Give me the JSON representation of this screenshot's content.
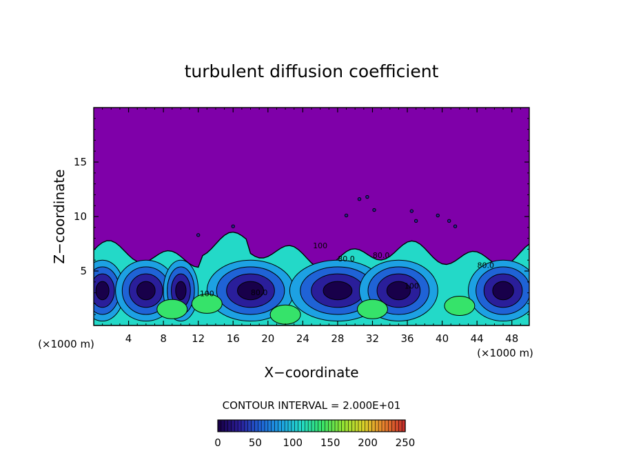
{
  "chart_data": {
    "type": "heatmap",
    "title": "turbulent diffusion coefficient",
    "xlabel": "X−coordinate",
    "ylabel": "Z−coordinate",
    "x_unit": "(×1000 m)",
    "x_unit_right": "(×1000 m)",
    "xlim": [
      0,
      50
    ],
    "ylim": [
      0,
      20
    ],
    "x_ticks": [
      4,
      8,
      12,
      16,
      20,
      24,
      28,
      32,
      36,
      40,
      44,
      48
    ],
    "y_ticks": [
      5,
      10,
      15
    ],
    "contour_interval_text": "CONTOUR INTERVAL = 2.000E+01",
    "contour_interval": 20,
    "colorbar": {
      "min": 0,
      "max": 250,
      "ticks": [
        0,
        50,
        100,
        150,
        200,
        250
      ],
      "colors": [
        "#18004a",
        "#2a1e9a",
        "#1f63d6",
        "#1da1e3",
        "#23d9c8",
        "#36e36a",
        "#8fe334",
        "#d8d52a",
        "#e9852e",
        "#c8302a"
      ]
    },
    "background_value_color": "#7f00a9",
    "contour_labels": [
      "100",
      "80.0",
      "100",
      "80.0",
      "80.0",
      "100",
      "80.0"
    ],
    "boundary_layer_top_z_approx": 6.5,
    "eddy_centers_x": [
      1,
      6,
      10,
      18,
      28,
      35,
      47
    ]
  }
}
